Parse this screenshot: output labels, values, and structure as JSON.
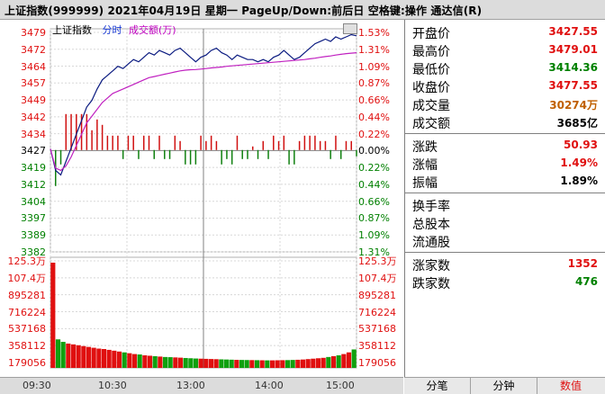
{
  "window": {
    "title": "上证指数(999999) 2021年04月19日 星期一 PageUp/Down:前后日 空格键:操作 通达信(R)"
  },
  "legend": {
    "name": "上证指数",
    "mode": "分时",
    "volume": "成交额(万)"
  },
  "price_axis": {
    "left": [
      "3479",
      "3472",
      "3464",
      "3457",
      "3449",
      "3442",
      "3434",
      "3427",
      "3419",
      "3412",
      "3404",
      "3397",
      "3389",
      "3382"
    ],
    "right": [
      "1.53%",
      "1.31%",
      "1.09%",
      "0.87%",
      "0.66%",
      "0.44%",
      "0.22%",
      "0.00%",
      "0.22%",
      "0.44%",
      "0.66%",
      "0.87%",
      "1.09%",
      "1.31%"
    ]
  },
  "volume_axis": {
    "left": [
      "125.3万",
      "107.4万",
      "895281",
      "716224",
      "537168",
      "358112",
      "179056"
    ],
    "right": [
      "125.3万",
      "107.4万",
      "895281",
      "716224",
      "537168",
      "358112",
      "179056"
    ]
  },
  "time_axis": [
    "09:30",
    "10:30",
    "13:00",
    "14:00",
    "15:00"
  ],
  "quote": {
    "open": {
      "label": "开盘价",
      "value": "3427.55"
    },
    "high": {
      "label": "最高价",
      "value": "3479.01"
    },
    "low": {
      "label": "最低价",
      "value": "3414.36"
    },
    "close": {
      "label": "收盘价",
      "value": "3477.55"
    },
    "vol": {
      "label": "成交量",
      "value": "30274万"
    },
    "amount": {
      "label": "成交额",
      "value": "3685亿"
    },
    "change": {
      "label": "涨跌",
      "value": "50.93"
    },
    "pct": {
      "label": "涨幅",
      "value": "1.49%"
    },
    "amp": {
      "label": "振幅",
      "value": "1.89%"
    },
    "turnover": {
      "label": "换手率",
      "value": ""
    },
    "total_shares": {
      "label": "总股本",
      "value": ""
    },
    "float_shares": {
      "label": "流通股",
      "value": ""
    },
    "up_count": {
      "label": "涨家数",
      "value": "1352"
    },
    "down_count": {
      "label": "跌家数",
      "value": "476"
    }
  },
  "tabs": [
    "分笔",
    "分钟",
    "数值"
  ],
  "chart_data": {
    "type": "line",
    "prev_close": 3427,
    "price_range": [
      3382,
      3479
    ],
    "time_ticks": [
      "09:30",
      "10:30",
      "13:00",
      "14:00",
      "15:00"
    ],
    "series": [
      {
        "values": [
          3427.5,
          3418,
          3416,
          3422,
          3428,
          3434,
          3440,
          3446,
          3449,
          3454,
          3458,
          3460,
          3462,
          3464,
          3463,
          3465,
          3467,
          3466,
          3468,
          3470,
          3469,
          3471,
          3470,
          3469,
          3471,
          3472,
          3470,
          3468,
          3466,
          3468,
          3469,
          3471,
          3472,
          3470,
          3469,
          3467,
          3469,
          3468,
          3467,
          3467,
          3466,
          3467,
          3466,
          3468,
          3469,
          3471,
          3469,
          3467,
          3468,
          3470,
          3472,
          3474,
          3475,
          3476,
          3475,
          3477,
          3476,
          3477,
          3478,
          3477.5
        ]
      },
      {
        "values": [
          3427.5,
          3419,
          3418,
          3420,
          3424,
          3429,
          3434,
          3439,
          3442,
          3445,
          3448,
          3450,
          3452,
          3453,
          3454,
          3455,
          3456,
          3457,
          3458,
          3459,
          3459.5,
          3460,
          3460.5,
          3461,
          3461.5,
          3462,
          3462.3,
          3462.5,
          3462.6,
          3462.8,
          3463,
          3463.3,
          3463.5,
          3463.7,
          3464,
          3464.2,
          3464.4,
          3464.6,
          3464.8,
          3465,
          3465.2,
          3465.4,
          3465.6,
          3465.8,
          3466,
          3466.2,
          3466.4,
          3466.6,
          3466.8,
          3467,
          3467.3,
          3467.6,
          3468,
          3468.3,
          3468.6,
          3469,
          3469.3,
          3469.6,
          3469.8,
          3470
        ]
      }
    ],
    "volume_range": [
      0,
      1253000
    ],
    "volume": [
      1253000,
      340000,
      310000,
      290000,
      280000,
      270000,
      260000,
      250000,
      240000,
      230000,
      225000,
      215000,
      205000,
      195000,
      185000,
      175000,
      165000,
      160000,
      150000,
      145000,
      140000,
      135000,
      130000,
      128000,
      125000,
      122000,
      118000,
      115000,
      112000,
      110000,
      108000,
      106000,
      104000,
      102000,
      100000,
      98000,
      96000,
      95000,
      94000,
      93000,
      92000,
      91000,
      90000,
      90000,
      91000,
      92000,
      93000,
      95000,
      97000,
      100000,
      105000,
      110000,
      115000,
      120000,
      130000,
      140000,
      150000,
      165000,
      185000,
      220000
    ]
  }
}
